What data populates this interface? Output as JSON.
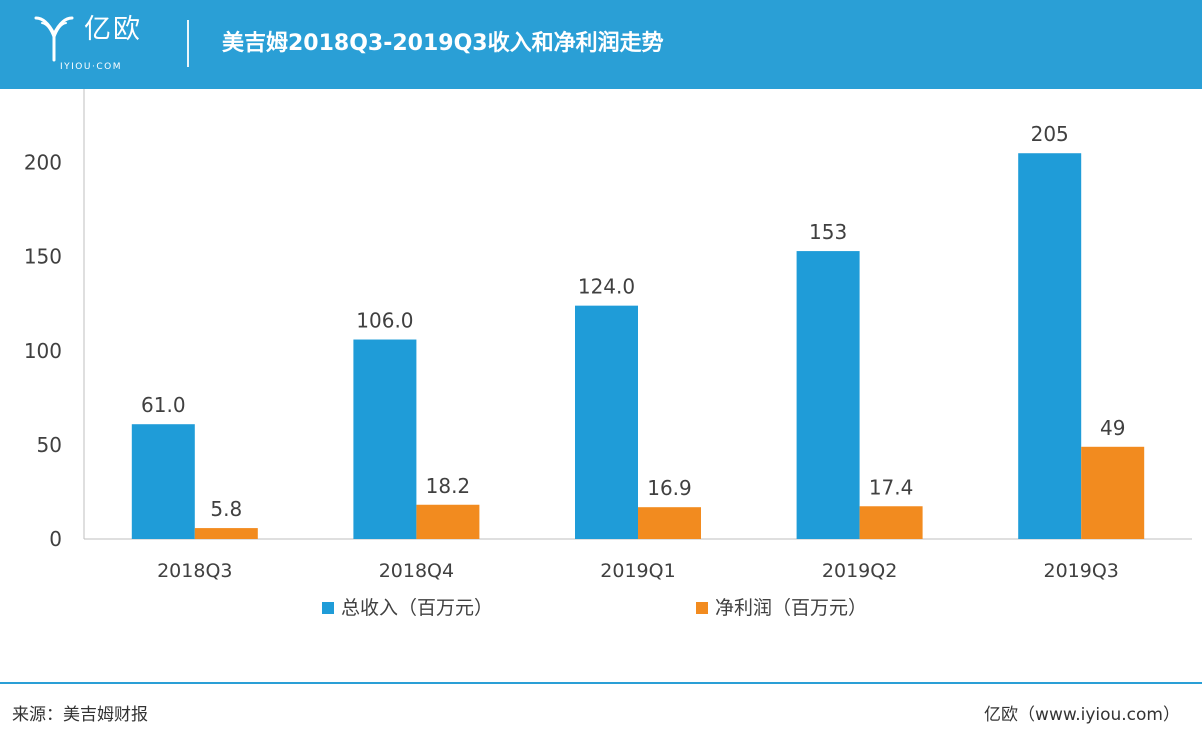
{
  "header": {
    "logo_text": "亿欧",
    "logo_sub": "IYIOU·COM",
    "title": "美吉姆2018Q3-2019Q3收入和净利润走势"
  },
  "chart_data": {
    "type": "bar",
    "title": "美吉姆2018Q3-2019Q3收入和净利润走势",
    "categories": [
      "2018Q3",
      "2018Q4",
      "2019Q1",
      "2019Q2",
      "2019Q3"
    ],
    "series": [
      {
        "name": "总收入（百万元）",
        "color": "#1f9cd8",
        "values": [
          61.0,
          106.0,
          124.0,
          153,
          205
        ],
        "labels": [
          "61.0",
          "106.0",
          "124.0",
          "153",
          "205"
        ]
      },
      {
        "name": "净利润（百万元）",
        "color": "#f28b1f",
        "values": [
          5.8,
          18.2,
          16.9,
          17.4,
          49
        ],
        "labels": [
          "5.8",
          "18.2",
          "16.9",
          "17.4",
          "49"
        ]
      }
    ],
    "yticks": [
      0,
      50,
      100,
      150,
      200
    ],
    "ylim": [
      0,
      220
    ],
    "grid": false,
    "legend_position": "bottom"
  },
  "footer": {
    "source": "来源：美吉姆财报",
    "credit": "亿欧（www.iyiou.com）"
  }
}
